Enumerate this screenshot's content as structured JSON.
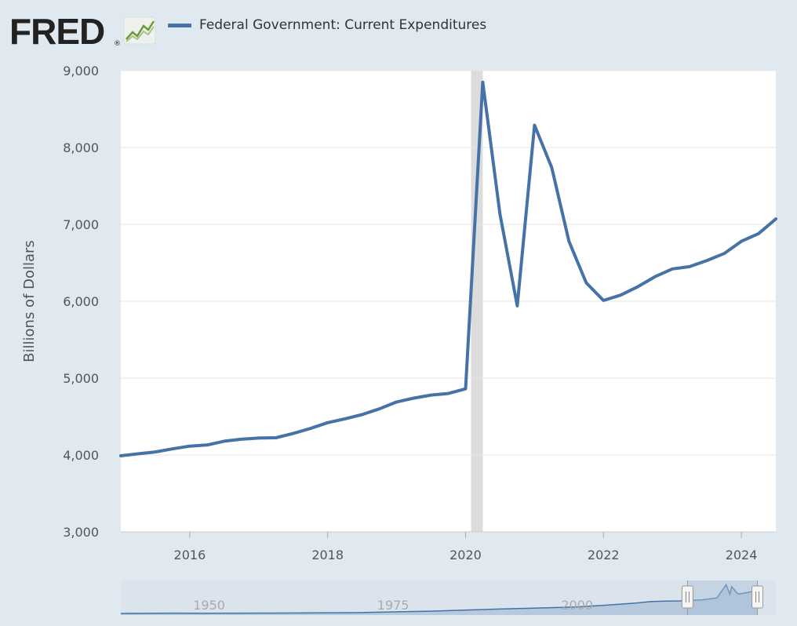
{
  "header": {
    "logo_text": "FRED",
    "logo_mark": "®",
    "logo_icon": "line-graph-icon"
  },
  "legend": {
    "series_name": "Federal Government: Current Expenditures",
    "color": "#4572a7"
  },
  "chart_data": {
    "type": "line",
    "ylabel": "Billions of Dollars",
    "xlabel": "",
    "ylim": [
      3000,
      9000
    ],
    "yticks": [
      3000,
      4000,
      5000,
      6000,
      7000,
      8000,
      9000
    ],
    "ytick_labels": [
      "3,000",
      "4,000",
      "5,000",
      "6,000",
      "7,000",
      "8,000",
      "9,000"
    ],
    "xlim": [
      2015.0,
      2024.5
    ],
    "xticks": [
      2016,
      2018,
      2020,
      2022,
      2024
    ],
    "xtick_labels": [
      "2016",
      "2018",
      "2020",
      "2022",
      "2024"
    ],
    "grid": "horizontal",
    "recession": [
      2020.08,
      2020.25
    ],
    "series": [
      {
        "name": "Federal Government: Current Expenditures",
        "color": "#4572a7",
        "x": [
          2015.0,
          2015.25,
          2015.5,
          2015.75,
          2016.0,
          2016.25,
          2016.5,
          2016.75,
          2017.0,
          2017.25,
          2017.5,
          2017.75,
          2018.0,
          2018.25,
          2018.5,
          2018.75,
          2019.0,
          2019.25,
          2019.5,
          2019.75,
          2020.0,
          2020.25,
          2020.5,
          2020.75,
          2021.0,
          2021.25,
          2021.5,
          2021.75,
          2022.0,
          2022.25,
          2022.5,
          2022.75,
          2023.0,
          2023.25,
          2023.5,
          2023.75,
          2024.0,
          2024.25,
          2024.5
        ],
        "values": [
          3990,
          4015,
          4040,
          4080,
          4115,
          4130,
          4180,
          4205,
          4220,
          4225,
          4280,
          4345,
          4420,
          4470,
          4525,
          4600,
          4690,
          4740,
          4780,
          4800,
          4860,
          8850,
          7130,
          5940,
          8290,
          7740,
          6780,
          6240,
          6010,
          6080,
          6190,
          6320,
          6420,
          6450,
          6530,
          6620,
          6780,
          6880,
          7070
        ]
      }
    ]
  },
  "navigator": {
    "labels": [
      "1950",
      "1975",
      "2000"
    ],
    "label_years": [
      1950,
      1975,
      2000
    ],
    "year_range": [
      1938,
      2027
    ],
    "selection": [
      2015.0,
      2024.5
    ],
    "history_x": [
      1938,
      1945,
      1950,
      1960,
      1970,
      1980,
      1990,
      2000,
      2005,
      2008,
      2010,
      2012,
      2014,
      2015,
      2017,
      2019,
      2020.25,
      2020.75,
      2021,
      2021.75,
      2022,
      2023,
      2024.5
    ],
    "history_y": [
      10,
      95,
      55,
      120,
      250,
      700,
      1400,
      2000,
      2700,
      3200,
      3650,
      3800,
      3880,
      3990,
      4220,
      4800,
      8850,
      5940,
      8290,
      6240,
      6010,
      6420,
      7070
    ]
  }
}
